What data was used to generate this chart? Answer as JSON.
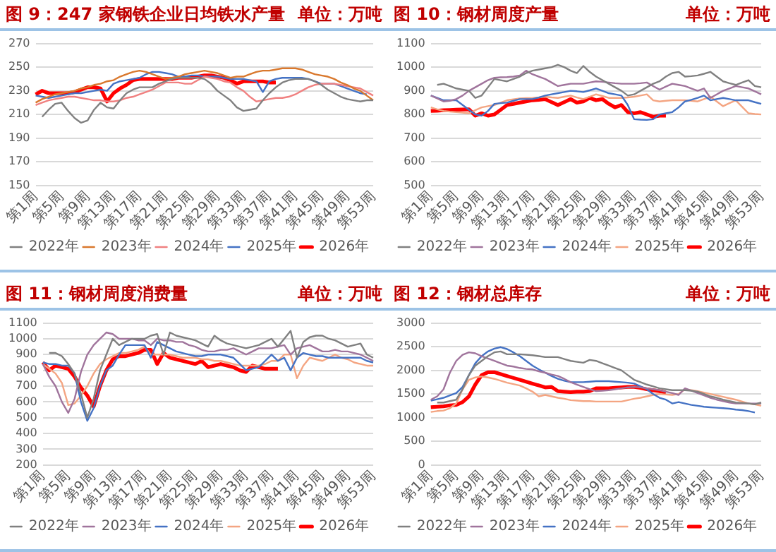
{
  "chart_data": [
    {
      "type": "line",
      "title": "图 9：247 家钢铁企业日均铁水产量",
      "subtitle": "单位：万吨",
      "categories": [
        "第1周",
        null,
        null,
        null,
        "第5周",
        null,
        null,
        null,
        "第9周",
        null,
        null,
        null,
        "第13周",
        null,
        null,
        null,
        "第17周",
        null,
        null,
        null,
        "第21周",
        null,
        null,
        null,
        "第25周",
        null,
        null,
        null,
        "第29周",
        null,
        null,
        null,
        "第33周",
        null,
        null,
        null,
        "第37周",
        null,
        null,
        null,
        "第41周",
        null,
        null,
        null,
        "第45周",
        null,
        null,
        null,
        "第49周",
        null,
        null,
        null,
        "第53周"
      ],
      "ylim": [
        150,
        270
      ],
      "yticks": [
        150,
        170,
        190,
        210,
        230,
        250,
        270
      ],
      "grid": "y",
      "legend": "bottom",
      "marker": "none",
      "line_style": "solid",
      "series": [
        {
          "name": "2022年",
          "color": "#808080",
          "values": [
            null,
            208,
            214,
            219,
            220,
            213,
            207,
            203,
            205,
            214,
            220,
            216,
            215,
            222,
            228,
            231,
            233,
            233,
            233,
            236,
            238,
            240,
            241,
            241,
            241,
            241,
            240,
            236,
            230,
            226,
            222,
            216,
            213,
            214,
            215,
            222,
            228,
            233,
            237,
            239,
            240,
            240,
            240,
            238,
            235,
            231,
            228,
            225,
            223,
            222,
            221,
            222,
            222
          ]
        },
        {
          "name": "2023年",
          "color": "#d9782d",
          "values": [
            220,
            223,
            225,
            227,
            228,
            229,
            230,
            232,
            233,
            235,
            236,
            238,
            239,
            242,
            244,
            246,
            247,
            246,
            244,
            242,
            240,
            241,
            242,
            244,
            245,
            246,
            247,
            246,
            245,
            243,
            241,
            242,
            242,
            244,
            246,
            247,
            247,
            248,
            249,
            249,
            249,
            248,
            246,
            244,
            243,
            242,
            240,
            237,
            235,
            232,
            230,
            226,
            222
          ]
        },
        {
          "name": "2024年",
          "color": "#f08080",
          "values": [
            218,
            220,
            222,
            223,
            224,
            225,
            225,
            224,
            223,
            222,
            222,
            221,
            221,
            222,
            224,
            225,
            227,
            229,
            231,
            234,
            237,
            237,
            237,
            236,
            236,
            239,
            242,
            241,
            240,
            238,
            237,
            233,
            230,
            225,
            221,
            222,
            223,
            224,
            224,
            225,
            227,
            230,
            233,
            235,
            236,
            236,
            236,
            235,
            234,
            233,
            232,
            229,
            226
          ]
        },
        {
          "name": "2025年",
          "color": "#4472c4",
          "values": [
            226,
            225,
            224,
            225,
            226,
            227,
            228,
            228,
            229,
            230,
            231,
            230,
            236,
            238,
            239,
            240,
            241,
            244,
            246,
            246,
            245,
            244,
            242,
            242,
            243,
            243,
            242,
            242,
            242,
            241,
            240,
            240,
            240,
            239,
            238,
            229,
            238,
            240,
            241,
            241,
            241,
            241,
            240,
            238,
            236,
            236,
            236,
            234,
            232,
            230,
            228,
            227,
            null
          ]
        },
        {
          "name": "2026年",
          "color": "#ff0000",
          "values": [
            227,
            230,
            228,
            228,
            228,
            228,
            229,
            231,
            233,
            233,
            232,
            221,
            228,
            232,
            235,
            239,
            240,
            240,
            240,
            240,
            240,
            240,
            241,
            241,
            241,
            242,
            243,
            243,
            242,
            241,
            239,
            236,
            238,
            238,
            238,
            238,
            237,
            237,
            null,
            null,
            null,
            null,
            null,
            null,
            null,
            null,
            null,
            null,
            null,
            null,
            null,
            null,
            null
          ]
        }
      ]
    },
    {
      "type": "line",
      "title": "图 10：钢材周度产量",
      "subtitle": "单位：万吨",
      "categories": [
        "第1周",
        null,
        null,
        null,
        "第5周",
        null,
        null,
        null,
        "第9周",
        null,
        null,
        null,
        "第13周",
        null,
        null,
        null,
        "第17周",
        null,
        null,
        null,
        "第21周",
        null,
        null,
        null,
        "第25周",
        null,
        null,
        null,
        "第29周",
        null,
        null,
        null,
        "第33周",
        null,
        null,
        null,
        "第37周",
        null,
        null,
        null,
        "第41周",
        null,
        null,
        null,
        "第45周",
        null,
        null,
        null,
        "第49周",
        null,
        null,
        null,
        "第53周"
      ],
      "ylim": [
        500,
        1100
      ],
      "yticks": [
        500,
        600,
        700,
        800,
        900,
        1000,
        1100
      ],
      "grid": "y",
      "legend": "bottom",
      "marker": "none",
      "line_style": "solid",
      "series": [
        {
          "name": "2022年",
          "color": "#808080",
          "values": [
            null,
            925,
            930,
            920,
            910,
            905,
            900,
            870,
            880,
            915,
            950,
            945,
            940,
            950,
            960,
            975,
            985,
            990,
            995,
            1000,
            1010,
            1000,
            985,
            975,
            1005,
            980,
            960,
            945,
            930,
            915,
            900,
            880,
            885,
            900,
            915,
            930,
            940,
            960,
            975,
            980,
            960,
            962,
            965,
            972,
            980,
            960,
            940,
            932,
            925,
            935,
            945,
            920,
            915
          ]
        },
        {
          "name": "2023年",
          "color": "#a0749c",
          "values": [
            880,
            868,
            855,
            858,
            865,
            880,
            900,
            915,
            930,
            945,
            955,
            957,
            958,
            960,
            965,
            985,
            970,
            960,
            950,
            935,
            920,
            925,
            930,
            930,
            930,
            935,
            940,
            938,
            935,
            932,
            930,
            930,
            930,
            932,
            935,
            920,
            905,
            918,
            930,
            925,
            920,
            910,
            900,
            910,
            870,
            885,
            900,
            910,
            920,
            915,
            910,
            898,
            885
          ]
        },
        {
          "name": "2024年",
          "color": "#4472c4",
          "values": [
            880,
            870,
            860,
            860,
            860,
            840,
            820,
            800,
            795,
            815,
            845,
            848,
            850,
            858,
            865,
            865,
            865,
            872,
            880,
            885,
            890,
            895,
            900,
            898,
            895,
            902,
            910,
            900,
            890,
            885,
            880,
            840,
            780,
            778,
            777,
            780,
            800,
            805,
            810,
            830,
            855,
            862,
            870,
            880,
            860,
            865,
            870,
            865,
            860,
            860,
            860,
            852,
            845
          ]
        },
        {
          "name": "2025年",
          "color": "#f4a582",
          "values": [
            830,
            822,
            815,
            812,
            810,
            808,
            805,
            818,
            830,
            835,
            840,
            850,
            860,
            864,
            868,
            869,
            870,
            872,
            875,
            872,
            870,
            875,
            880,
            872,
            865,
            875,
            885,
            878,
            870,
            870,
            870,
            872,
            875,
            880,
            885,
            860,
            855,
            858,
            860,
            860,
            860,
            858,
            855,
            865,
            875,
            855,
            835,
            848,
            860,
            832,
            805,
            802,
            800
          ]
        },
        {
          "name": "2026年",
          "color": "#ff0000",
          "values": [
            815,
            816,
            818,
            819,
            820,
            821,
            822,
            795,
            805,
            795,
            800,
            820,
            840,
            845,
            850,
            855,
            860,
            862,
            865,
            852,
            840,
            852,
            865,
            850,
            855,
            870,
            860,
            865,
            845,
            830,
            840,
            810,
            805,
            810,
            800,
            790,
            795,
            795,
            null,
            null,
            null,
            null,
            null,
            null,
            null,
            null,
            null,
            null,
            null,
            null,
            null,
            null,
            null
          ]
        }
      ]
    },
    {
      "type": "line",
      "title": "图 11：钢材周度消费量",
      "subtitle": "单位：万吨",
      "categories": [
        "第1周",
        null,
        null,
        null,
        "第5周",
        null,
        null,
        null,
        "第9周",
        null,
        null,
        null,
        "第13周",
        null,
        null,
        null,
        "第17周",
        null,
        null,
        null,
        "第21周",
        null,
        null,
        null,
        "第25周",
        null,
        null,
        null,
        "第29周",
        null,
        null,
        null,
        "第33周",
        null,
        null,
        null,
        "第37周",
        null,
        null,
        null,
        "第41周",
        null,
        null,
        null,
        "第45周",
        null,
        null,
        null,
        "第49周",
        null,
        null,
        null,
        "第53周"
      ],
      "ylim": [
        200,
        1100
      ],
      "yticks": [
        200,
        300,
        400,
        500,
        600,
        700,
        800,
        900,
        1000,
        1100
      ],
      "grid": "y",
      "legend": "bottom",
      "marker": "none",
      "line_style": "solid",
      "series": [
        {
          "name": "2022年",
          "color": "#808080",
          "values": [
            null,
            910,
            910,
            890,
            840,
            780,
            650,
            500,
            620,
            800,
            900,
            1000,
            960,
            980,
            1000,
            1000,
            1000,
            1020,
            1030,
            900,
            1040,
            1020,
            1010,
            1000,
            990,
            970,
            950,
            1020,
            990,
            970,
            960,
            950,
            940,
            950,
            960,
            980,
            1000,
            950,
            1000,
            1050,
            880,
            980,
            1010,
            1020,
            1020,
            1000,
            990,
            970,
            950,
            960,
            970,
            900,
            880
          ]
        },
        {
          "name": "2023年",
          "color": "#a0749c",
          "values": [
            840,
            760,
            700,
            600,
            530,
            620,
            790,
            900,
            960,
            1000,
            1040,
            1030,
            1000,
            1000,
            1000,
            990,
            990,
            960,
            1000,
            990,
            990,
            980,
            980,
            960,
            950,
            930,
            920,
            920,
            930,
            930,
            940,
            920,
            900,
            920,
            940,
            940,
            940,
            950,
            960,
            900,
            940,
            950,
            960,
            940,
            920,
            920,
            930,
            920,
            920,
            910,
            900,
            880,
            860
          ]
        },
        {
          "name": "2024年",
          "color": "#4472c4",
          "values": [
            850,
            840,
            840,
            830,
            830,
            780,
            600,
            480,
            560,
            700,
            800,
            830,
            900,
            960,
            960,
            960,
            960,
            880,
            980,
            960,
            940,
            920,
            910,
            900,
            890,
            890,
            900,
            900,
            900,
            890,
            880,
            840,
            800,
            810,
            820,
            860,
            900,
            860,
            880,
            800,
            880,
            910,
            900,
            890,
            890,
            880,
            880,
            880,
            880,
            880,
            880,
            860,
            850
          ]
        },
        {
          "name": "2025年",
          "color": "#f4a582",
          "values": [
            840,
            810,
            780,
            720,
            580,
            590,
            640,
            700,
            780,
            840,
            870,
            890,
            910,
            910,
            920,
            930,
            950,
            900,
            900,
            900,
            900,
            890,
            880,
            880,
            880,
            870,
            870,
            860,
            860,
            850,
            840,
            830,
            830,
            830,
            830,
            840,
            860,
            860,
            900,
            900,
            750,
            830,
            880,
            870,
            860,
            880,
            900,
            880,
            870,
            850,
            840,
            830,
            830
          ]
        },
        {
          "name": "2026年",
          "color": "#ff0000",
          "values": [
            850,
            800,
            830,
            820,
            810,
            760,
            690,
            640,
            570,
            700,
            800,
            870,
            890,
            890,
            900,
            910,
            930,
            930,
            840,
            910,
            880,
            870,
            860,
            850,
            840,
            860,
            820,
            830,
            840,
            830,
            820,
            800,
            790,
            830,
            820,
            810,
            810,
            810,
            null,
            null,
            null,
            null,
            null,
            null,
            null,
            null,
            null,
            null,
            null,
            null,
            null,
            null,
            null
          ]
        }
      ]
    },
    {
      "type": "line",
      "title": "图 12：钢材总库存",
      "subtitle": "单位：万吨",
      "categories": [
        "第1周",
        null,
        null,
        null,
        "第5周",
        null,
        null,
        null,
        "第9周",
        null,
        null,
        null,
        "第13周",
        null,
        null,
        null,
        "第17周",
        null,
        null,
        null,
        "第21周",
        null,
        null,
        null,
        "第25周",
        null,
        null,
        null,
        "第29周",
        null,
        null,
        null,
        "第33周",
        null,
        null,
        null,
        "第37周",
        null,
        null,
        null,
        "第41周",
        null,
        null,
        null,
        "第45周",
        null,
        null,
        null,
        "第49周",
        null,
        null,
        null,
        "第53周"
      ],
      "ylim": [
        0,
        3000
      ],
      "yticks": [
        0,
        500,
        1000,
        1500,
        2000,
        2500,
        3000
      ],
      "grid": "y",
      "legend": "bottom",
      "marker": "none",
      "line_style": "solid",
      "series": [
        {
          "name": "2022年",
          "color": "#808080",
          "values": [
            null,
            1320,
            1320,
            1350,
            1380,
            1600,
            1900,
            2100,
            2200,
            2300,
            2380,
            2400,
            2340,
            2340,
            2340,
            2330,
            2320,
            2300,
            2280,
            2280,
            2280,
            2240,
            2200,
            2180,
            2160,
            2220,
            2200,
            2150,
            2100,
            2050,
            2000,
            1900,
            1800,
            1750,
            1700,
            1660,
            1620,
            1600,
            1580,
            1580,
            1580,
            1570,
            1550,
            1500,
            1450,
            1420,
            1380,
            1350,
            1320,
            1310,
            1300,
            1280,
            1320
          ]
        },
        {
          "name": "2023年",
          "color": "#a0749c",
          "values": [
            1380,
            1450,
            1600,
            1950,
            2200,
            2330,
            2380,
            2360,
            2300,
            2250,
            2200,
            2150,
            2100,
            2080,
            2050,
            2030,
            2020,
            1980,
            1950,
            1910,
            1880,
            1820,
            1750,
            1700,
            1650,
            1600,
            1560,
            1570,
            1580,
            1600,
            1620,
            1640,
            1650,
            1640,
            1620,
            1600,
            1580,
            1550,
            1520,
            1480,
            1620,
            1570,
            1520,
            1470,
            1420,
            1380,
            1350,
            1320,
            1300,
            1300,
            1300,
            1300,
            1300
          ]
        },
        {
          "name": "2024年",
          "color": "#4472c4",
          "values": [
            1360,
            1390,
            1420,
            1470,
            1520,
            1650,
            1900,
            2150,
            2300,
            2400,
            2460,
            2490,
            2450,
            2380,
            2300,
            2200,
            2100,
            2020,
            1950,
            1880,
            1820,
            1780,
            1750,
            1750,
            1750,
            1760,
            1770,
            1770,
            1770,
            1760,
            1750,
            1740,
            1720,
            1660,
            1600,
            1500,
            1420,
            1380,
            1300,
            1330,
            1300,
            1270,
            1250,
            1230,
            1220,
            1210,
            1200,
            1190,
            1170,
            1160,
            1140,
            1110,
            null
          ]
        },
        {
          "name": "2025年",
          "color": "#f4a582",
          "values": [
            1120,
            1140,
            1150,
            1200,
            1300,
            1600,
            1800,
            1850,
            1870,
            1850,
            1820,
            1780,
            1740,
            1710,
            1680,
            1620,
            1550,
            1450,
            1480,
            1450,
            1420,
            1400,
            1370,
            1360,
            1350,
            1350,
            1340,
            1340,
            1340,
            1340,
            1340,
            1370,
            1400,
            1420,
            1450,
            1480,
            1500,
            1490,
            1480,
            1500,
            1600,
            1580,
            1560,
            1530,
            1500,
            1470,
            1440,
            1410,
            1380,
            1340,
            1300,
            1280,
            1250
          ]
        },
        {
          "name": "2026年",
          "color": "#ff0000",
          "values": [
            1220,
            1230,
            1240,
            1260,
            1270,
            1330,
            1450,
            1700,
            1900,
            1960,
            1960,
            1920,
            1880,
            1840,
            1800,
            1760,
            1720,
            1680,
            1640,
            1650,
            1560,
            1550,
            1540,
            1550,
            1550,
            1560,
            1620,
            1620,
            1620,
            1630,
            1640,
            1650,
            1650,
            1630,
            1600,
            1580,
            1560,
            1530,
            null,
            null,
            null,
            null,
            null,
            null,
            null,
            null,
            null,
            null,
            null,
            null,
            null,
            null,
            null
          ]
        }
      ]
    }
  ]
}
